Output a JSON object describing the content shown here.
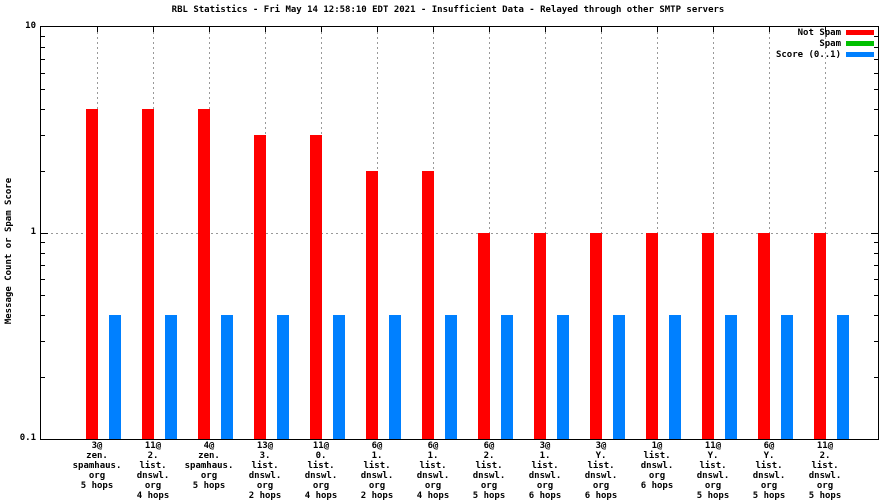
{
  "chart_data": {
    "type": "bar",
    "title": "RBL Statistics - Fri May 14 12:58:10 EDT 2021 - Insufficient Data - Relayed through other SMTP servers",
    "ylabel": "Message Count or Spam Score",
    "xlabel": "",
    "yscale": "log",
    "ylim": [
      0.1,
      10
    ],
    "yticks": [
      {
        "value": 10,
        "label": "10"
      },
      {
        "value": 1,
        "label": "1"
      },
      {
        "value": 0.1,
        "label": "0.1"
      }
    ],
    "grid": {
      "horizontal_dashed_at": 1,
      "vertical_dashed_at_each_category": true,
      "color": "#999999"
    },
    "legend_position": "top-right-inside",
    "categories": [
      {
        "lines": [
          "3@",
          "zen.",
          "spamhaus.",
          "org",
          "5 hops"
        ]
      },
      {
        "lines": [
          "11@",
          "2.",
          "list.",
          "dnswl.",
          "org",
          "4 hops"
        ]
      },
      {
        "lines": [
          "4@",
          "zen.",
          "spamhaus.",
          "org",
          "5 hops"
        ]
      },
      {
        "lines": [
          "13@",
          "3.",
          "list.",
          "dnswl.",
          "org",
          "2 hops"
        ]
      },
      {
        "lines": [
          "11@",
          "0.",
          "list.",
          "dnswl.",
          "org",
          "4 hops"
        ]
      },
      {
        "lines": [
          "6@",
          "1.",
          "list.",
          "dnswl.",
          "org",
          "2 hops"
        ]
      },
      {
        "lines": [
          "6@",
          "1.",
          "list.",
          "dnswl.",
          "org",
          "4 hops"
        ]
      },
      {
        "lines": [
          "6@",
          "2.",
          "list.",
          "dnswl.",
          "org",
          "5 hops"
        ]
      },
      {
        "lines": [
          "3@",
          "1.",
          "list.",
          "dnswl.",
          "org",
          "6 hops"
        ]
      },
      {
        "lines": [
          "3@",
          "Y.",
          "list.",
          "dnswl.",
          "org",
          "6 hops"
        ]
      },
      {
        "lines": [
          "1@",
          "list.",
          "dnswl.",
          "org",
          "6 hops"
        ]
      },
      {
        "lines": [
          "11@",
          "Y.",
          "list.",
          "dnswl.",
          "org",
          "5 hops"
        ]
      },
      {
        "lines": [
          "6@",
          "Y.",
          "list.",
          "dnswl.",
          "org",
          "5 hops"
        ]
      },
      {
        "lines": [
          "11@",
          "2.",
          "list.",
          "dnswl.",
          "org",
          "5 hops"
        ]
      }
    ],
    "series": [
      {
        "name": "Not Spam",
        "color": "#ff0000",
        "values": [
          4,
          4,
          4,
          3,
          3,
          2,
          2,
          1,
          1,
          1,
          1,
          1,
          1,
          1
        ]
      },
      {
        "name": "Spam",
        "color": "#00c000",
        "values": [
          0,
          0,
          0,
          0,
          0,
          0,
          0,
          0,
          0,
          0,
          0,
          0,
          0,
          0
        ]
      },
      {
        "name": "Score (0..1)",
        "color": "#0080ff",
        "values": [
          0.4,
          0.4,
          0.4,
          0.4,
          0.4,
          0.4,
          0.4,
          0.4,
          0.4,
          0.4,
          0.4,
          0.4,
          0.4,
          0.4
        ]
      }
    ],
    "colors": {
      "axis": "#000000",
      "grid": "#999999",
      "background": "#ffffff"
    }
  }
}
